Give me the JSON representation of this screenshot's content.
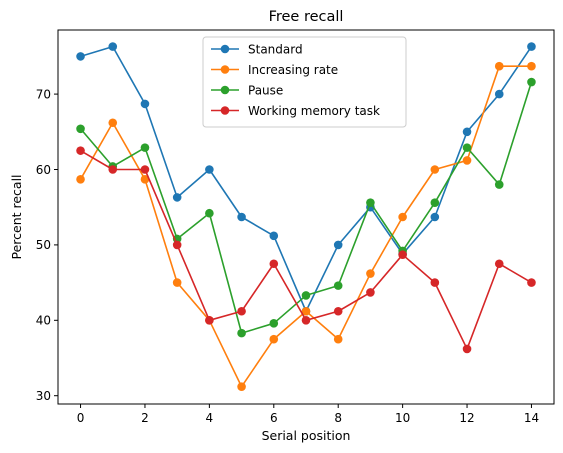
{
  "chart_data": {
    "type": "line",
    "title": "Free recall",
    "xlabel": "Serial position",
    "ylabel": "Percent recall",
    "x": [
      0,
      1,
      2,
      3,
      4,
      5,
      6,
      7,
      8,
      9,
      10,
      11,
      12,
      13,
      14
    ],
    "xticks": [
      0,
      2,
      4,
      6,
      8,
      10,
      12,
      14
    ],
    "yticks": [
      30,
      40,
      50,
      60,
      70
    ],
    "xlim": [
      -0.7,
      14.7
    ],
    "ylim": [
      28.9,
      78.5
    ],
    "grid": false,
    "legend_position": "upper-center",
    "series": [
      {
        "name": "Standard",
        "color": "#1f77b4",
        "values": [
          75.0,
          76.3,
          68.7,
          56.3,
          60.0,
          53.7,
          51.2,
          41.2,
          50.0,
          55.0,
          48.8,
          53.7,
          65.0,
          70.0,
          76.3
        ]
      },
      {
        "name": "Increasing rate",
        "color": "#ff7f0e",
        "values": [
          58.7,
          66.2,
          58.7,
          45.0,
          40.0,
          31.2,
          37.5,
          41.2,
          37.5,
          46.2,
          53.7,
          60.0,
          61.2,
          73.7,
          73.7
        ]
      },
      {
        "name": "Pause",
        "color": "#2ca02c",
        "values": [
          65.4,
          60.4,
          62.9,
          50.8,
          54.2,
          38.3,
          39.6,
          43.3,
          44.6,
          55.6,
          49.2,
          55.6,
          62.9,
          58.0,
          71.6
        ]
      },
      {
        "name": "Working memory task",
        "color": "#d62728",
        "values": [
          62.5,
          60.0,
          60.0,
          50.0,
          40.0,
          41.2,
          47.5,
          40.0,
          41.2,
          43.7,
          48.7,
          45.0,
          36.2,
          47.5,
          45.0
        ]
      }
    ]
  }
}
